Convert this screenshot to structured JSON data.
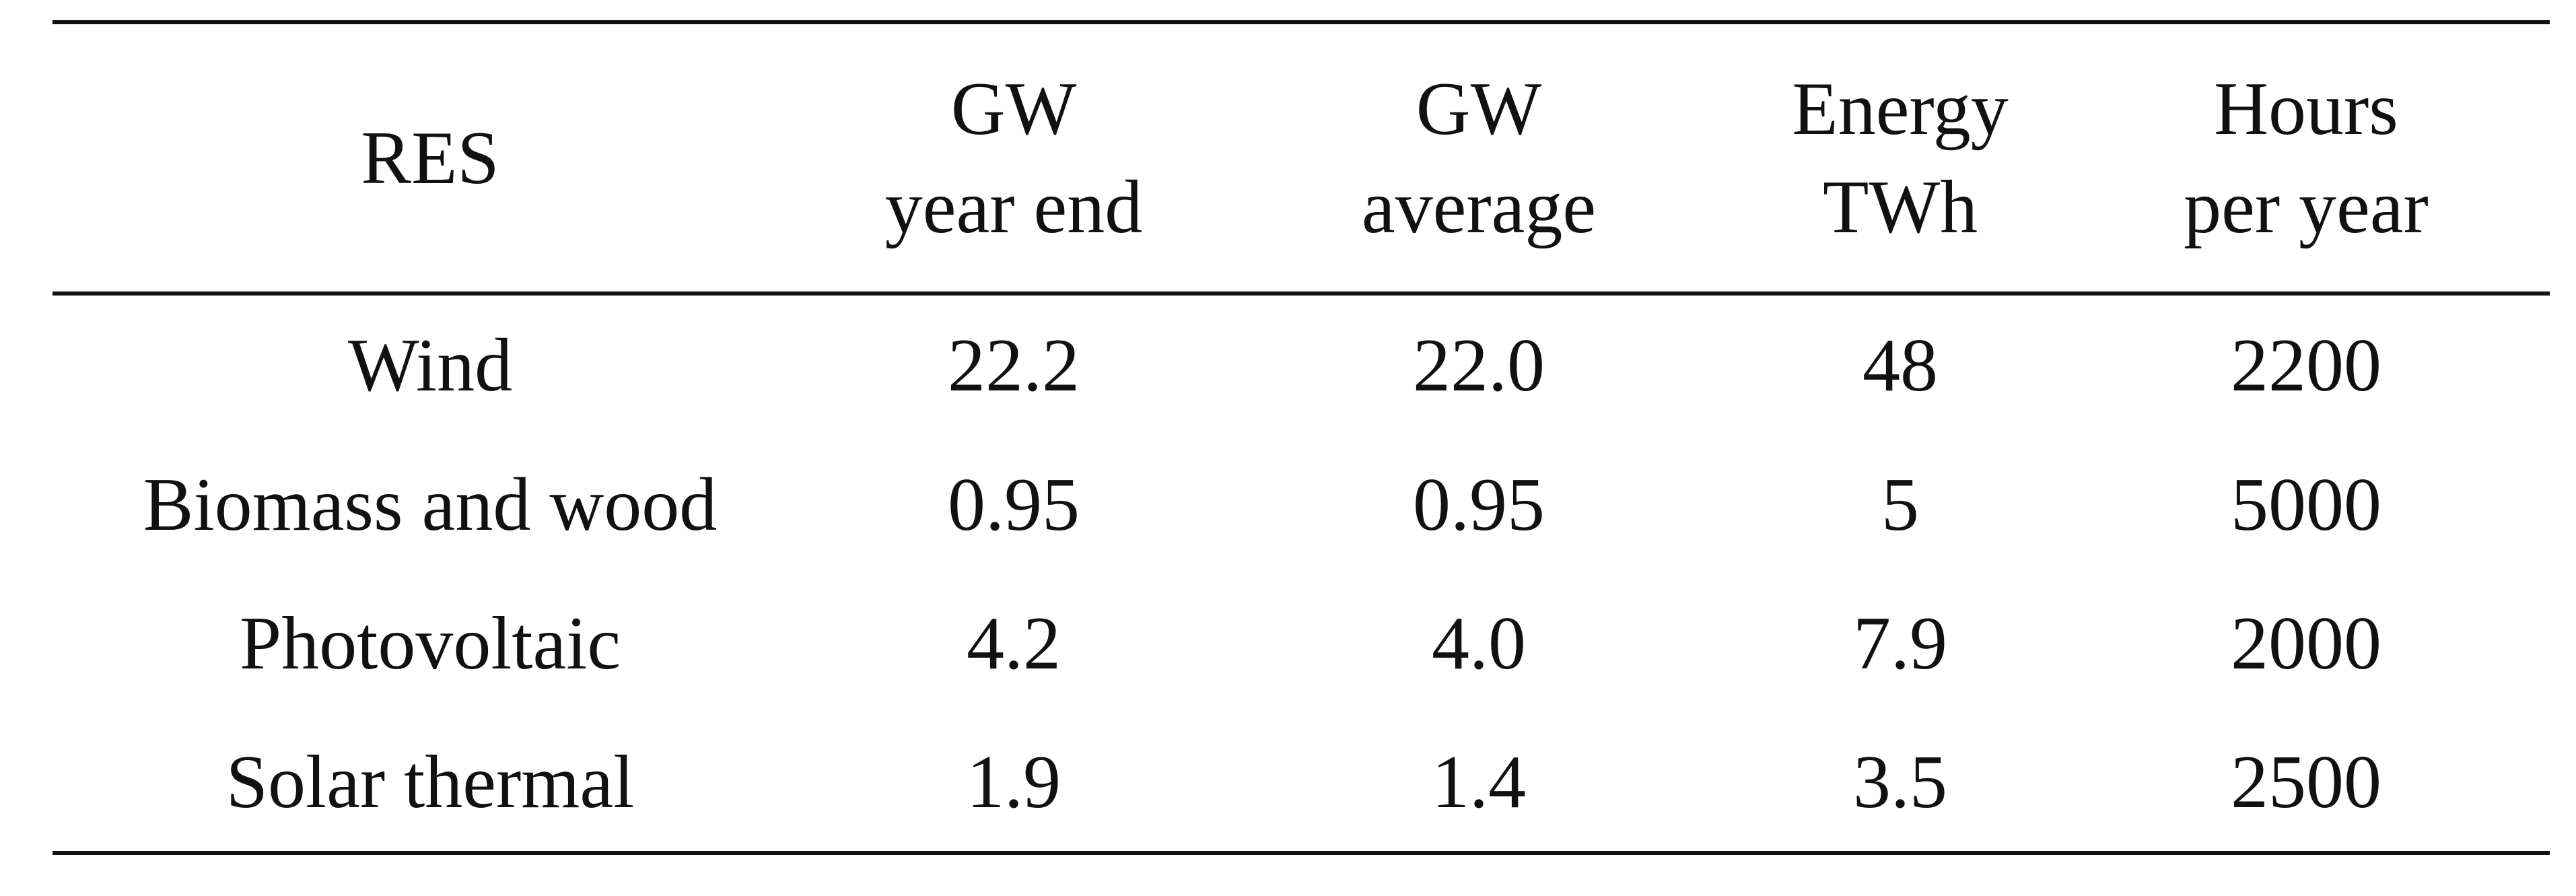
{
  "table": {
    "headers": [
      [
        "RES"
      ],
      [
        "GW",
        "year end"
      ],
      [
        "GW",
        "average"
      ],
      [
        "Energy",
        "TWh"
      ],
      [
        "Hours",
        "per year"
      ]
    ],
    "rows": [
      [
        "Wind",
        "22.2",
        "22.0",
        "48",
        "2200"
      ],
      [
        "Biomass and wood",
        "0.95",
        "0.95",
        "5",
        "5000"
      ],
      [
        "Photovoltaic",
        "4.2",
        "4.0",
        "7.9",
        "2000"
      ],
      [
        "Solar thermal",
        "1.9",
        "1.4",
        "3.5",
        "2500"
      ]
    ]
  }
}
